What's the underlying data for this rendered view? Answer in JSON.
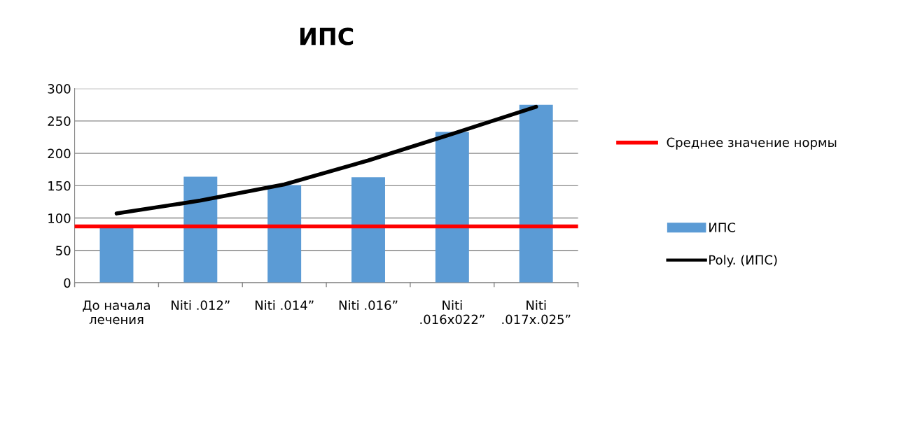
{
  "chart_data": {
    "type": "bar",
    "title": "ИПС",
    "categories": [
      "До начала лечения",
      "Niti .012”",
      "Niti .014”",
      "Niti .016”",
      "Niti .016x022”",
      "Niti .017x.025”"
    ],
    "series": [
      {
        "name": "ИПС",
        "color": "#5b9bd5",
        "values": [
          85,
          164,
          151,
          163,
          233,
          275
        ]
      },
      {
        "name": "Poly. (ИПС)",
        "type": "line",
        "color": "#000000",
        "values": [
          107,
          127,
          152,
          189,
          230,
          272
        ]
      }
    ],
    "ref_lines": [
      {
        "axis": "y",
        "value": 87,
        "label": "Среднее значение нормы",
        "color": "#ff0000"
      }
    ],
    "ylim": [
      0,
      300
    ],
    "yticks": [
      0,
      50,
      100,
      150,
      200,
      250,
      300
    ],
    "grid": "y",
    "legend": "right"
  }
}
